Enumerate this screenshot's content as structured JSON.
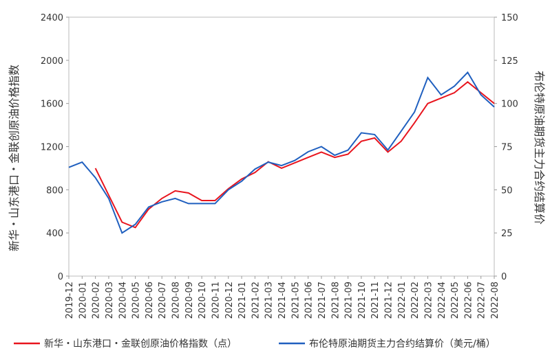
{
  "chart_data": {
    "type": "line",
    "ylabel": "新华・山东港口・金联创原油价格指数",
    "y2label": "布伦特原油期货主力合约结算价",
    "x": [
      "2019-12",
      "2020-01",
      "2020-02",
      "2020-03",
      "2020-04",
      "2020-05",
      "2020-06",
      "2020-07",
      "2020-08",
      "2020-09",
      "2020-10",
      "2020-11",
      "2020-12",
      "2021-01",
      "2021-02",
      "2021-03",
      "2021-04",
      "2021-05",
      "2021-06",
      "2021-07",
      "2021-08",
      "2021-09",
      "2021-10",
      "2021-11",
      "2021-12",
      "2022-01",
      "2022-02",
      "2022-03",
      "2022-04",
      "2022-05",
      "2022-06",
      "2022-07",
      "2022-08"
    ],
    "series": [
      {
        "name": "新华・山东港口・金联创原油价格指数（点）",
        "color": "#e8141d",
        "axis": "y",
        "values": [
          null,
          null,
          1000,
          750,
          500,
          450,
          620,
          720,
          790,
          770,
          700,
          700,
          810,
          900,
          960,
          1060,
          1000,
          1050,
          1100,
          1150,
          1100,
          1130,
          1250,
          1280,
          1150,
          1250,
          1420,
          1600,
          1650,
          1700,
          1800,
          1700,
          1600
        ]
      },
      {
        "name": "布伦特原油期货主力合约结算价（美元/桶）",
        "color": "#1f5fbf",
        "axis": "y2",
        "values": [
          63,
          66,
          57,
          45,
          25,
          30,
          40,
          43,
          45,
          42,
          42,
          42,
          50,
          55,
          62,
          66,
          64,
          67,
          72,
          75,
          70,
          73,
          83,
          82,
          73,
          84,
          95,
          115,
          105,
          110,
          118,
          105,
          98
        ]
      }
    ],
    "ylim": [
      0,
      2400
    ],
    "yticks": [
      0,
      400,
      800,
      1200,
      1600,
      2000,
      2400
    ],
    "y2lim": [
      0,
      150
    ],
    "y2ticks": [
      0,
      25,
      50,
      75,
      100,
      125,
      150
    ],
    "legend": "bottom"
  }
}
